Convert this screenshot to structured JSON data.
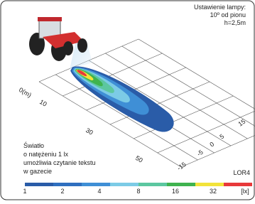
{
  "setting": {
    "title": "Ustawienie lampy:",
    "angle": "10º od pionu",
    "height": "h=2,5m"
  },
  "length_labels": [
    "0(m)",
    "10",
    "30",
    "50"
  ],
  "width_labels": [
    "15",
    "5",
    "0",
    "-5",
    "-15"
  ],
  "note": [
    "Światło",
    "o natężeniu 1 lx",
    "umożliwia czytanie tekstu",
    "w gazecie"
  ],
  "model": "LOR4",
  "scale": {
    "labels": [
      "1",
      "2",
      "4",
      "8",
      "16",
      "32"
    ],
    "unit": "[lx]"
  }
}
